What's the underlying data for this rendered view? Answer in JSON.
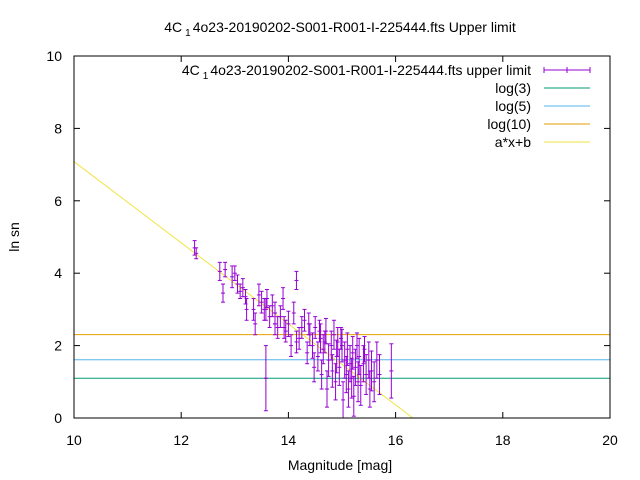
{
  "chart_data": {
    "type": "scatter",
    "title_main": "4C",
    "title_sub": "1",
    "title_rest": "4o23-20190202-S001-R001-I-225444.fts Upper limit",
    "xlabel": "Magnitude [mag]",
    "ylabel": "ln sn",
    "xlim": [
      10,
      20
    ],
    "ylim": [
      0,
      10
    ],
    "xticks": [
      "10",
      "12",
      "14",
      "16",
      "18",
      "20"
    ],
    "yticks": [
      "0",
      "2",
      "4",
      "6",
      "8",
      "10"
    ],
    "grid": false,
    "legend_position": "top-right",
    "series": [
      {
        "name_main": "4C",
        "name_sub": "1",
        "name_rest": "4o23-20190202-S001-R001-I-225444.fts upper limit",
        "kind": "errorbars",
        "color": "#9400d3",
        "points": [
          [
            12.25,
            4.7,
            0.2
          ],
          [
            12.28,
            4.55,
            0.15
          ],
          [
            12.72,
            4.05,
            0.25
          ],
          [
            12.78,
            3.45,
            0.25
          ],
          [
            12.82,
            4.1,
            0.2
          ],
          [
            12.95,
            3.9,
            0.3
          ],
          [
            13.0,
            4.0,
            0.2
          ],
          [
            13.05,
            3.7,
            0.25
          ],
          [
            13.1,
            3.5,
            0.2
          ],
          [
            13.15,
            3.6,
            0.25
          ],
          [
            13.2,
            3.35,
            0.2
          ],
          [
            13.22,
            3.0,
            0.3
          ],
          [
            13.35,
            3.0,
            0.3
          ],
          [
            13.38,
            2.6,
            0.3
          ],
          [
            13.45,
            3.4,
            0.3
          ],
          [
            13.5,
            3.2,
            0.3
          ],
          [
            13.55,
            3.0,
            0.3
          ],
          [
            13.58,
            1.1,
            0.9
          ],
          [
            13.6,
            3.3,
            0.25
          ],
          [
            13.65,
            2.8,
            0.3
          ],
          [
            13.7,
            3.1,
            0.3
          ],
          [
            13.75,
            2.9,
            0.3
          ],
          [
            13.8,
            2.5,
            0.3
          ],
          [
            13.85,
            2.8,
            0.3
          ],
          [
            13.9,
            3.3,
            0.3
          ],
          [
            13.95,
            2.4,
            0.3
          ],
          [
            14.0,
            2.6,
            0.35
          ],
          [
            14.05,
            2.0,
            0.3
          ],
          [
            14.1,
            2.9,
            0.3
          ],
          [
            14.15,
            3.8,
            0.25
          ],
          [
            14.2,
            2.2,
            0.3
          ],
          [
            14.25,
            2.5,
            0.3
          ],
          [
            14.3,
            2.7,
            0.3
          ],
          [
            14.35,
            1.8,
            0.3
          ],
          [
            14.4,
            2.3,
            0.3
          ],
          [
            14.45,
            2.0,
            0.35
          ],
          [
            14.5,
            2.5,
            0.3
          ],
          [
            14.55,
            1.7,
            0.4
          ],
          [
            14.6,
            2.2,
            0.4
          ],
          [
            14.62,
            1.2,
            0.4
          ],
          [
            14.65,
            1.9,
            0.4
          ],
          [
            14.7,
            2.4,
            0.35
          ],
          [
            14.72,
            0.8,
            0.5
          ],
          [
            14.75,
            1.6,
            0.45
          ],
          [
            14.8,
            2.0,
            0.4
          ],
          [
            14.82,
            1.3,
            0.45
          ],
          [
            14.85,
            2.3,
            0.4
          ],
          [
            14.88,
            1.0,
            0.5
          ],
          [
            14.9,
            1.7,
            0.45
          ],
          [
            14.92,
            2.1,
            0.4
          ],
          [
            14.95,
            1.4,
            0.5
          ],
          [
            15.0,
            2.0,
            0.45
          ],
          [
            15.02,
            0.5,
            0.5
          ],
          [
            15.05,
            1.6,
            0.5
          ],
          [
            15.08,
            1.2,
            0.5
          ],
          [
            15.1,
            1.9,
            0.45
          ],
          [
            15.12,
            0.8,
            0.5
          ],
          [
            15.15,
            1.5,
            0.5
          ],
          [
            15.18,
            1.1,
            0.55
          ],
          [
            15.2,
            1.8,
            0.45
          ],
          [
            15.22,
            0.6,
            0.55
          ],
          [
            15.25,
            1.4,
            0.5
          ],
          [
            15.3,
            1.0,
            0.55
          ],
          [
            15.32,
            1.7,
            0.5
          ],
          [
            15.35,
            0.9,
            0.55
          ],
          [
            15.4,
            1.5,
            0.5
          ],
          [
            15.45,
            1.2,
            0.55
          ],
          [
            15.5,
            1.6,
            0.5
          ],
          [
            15.52,
            0.8,
            0.5
          ],
          [
            15.55,
            1.3,
            0.55
          ],
          [
            15.6,
            1.0,
            0.55
          ],
          [
            15.65,
            1.6,
            0.5
          ],
          [
            15.7,
            1.2,
            0.55
          ],
          [
            15.92,
            1.3,
            0.75
          ],
          [
            14.68,
            2.1,
            0.3
          ],
          [
            14.38,
            2.6,
            0.3
          ],
          [
            14.15,
            2.1,
            0.3
          ],
          [
            13.92,
            2.5,
            0.3
          ],
          [
            14.58,
            2.4,
            0.3
          ],
          [
            14.98,
            2.2,
            0.3
          ],
          [
            15.28,
            2.0,
            0.35
          ],
          [
            15.42,
            1.9,
            0.35
          ],
          [
            13.58,
            3.0,
            0.3
          ],
          [
            13.75,
            2.6,
            0.3
          ],
          [
            14.48,
            1.4,
            0.4
          ]
        ]
      },
      {
        "name": "log(3)",
        "kind": "hline",
        "y": 1.0986,
        "color": "#009e73"
      },
      {
        "name": "log(5)",
        "kind": "hline",
        "y": 1.6094,
        "color": "#56b4e9"
      },
      {
        "name": "log(10)",
        "kind": "hline",
        "y": 2.3026,
        "color": "#e69f00"
      },
      {
        "name": "a*x+b",
        "kind": "fitline",
        "a": -1.12,
        "b": 18.28,
        "color": "#f0e442"
      }
    ]
  }
}
